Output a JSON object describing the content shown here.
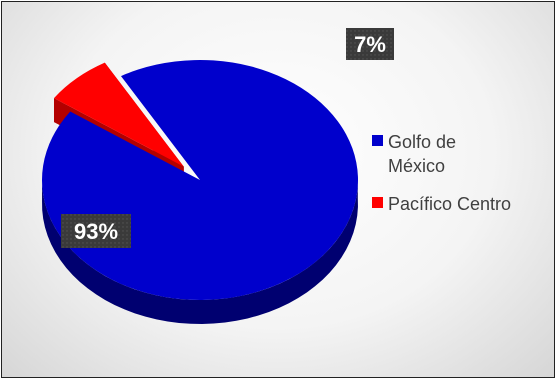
{
  "chart_data": {
    "type": "pie",
    "title": "",
    "categories": [
      "Golfo de México",
      "Pacífico Centro"
    ],
    "values": [
      93,
      7
    ],
    "data_labels": [
      "93%",
      "7%"
    ],
    "colors": [
      "#0000cc",
      "#ff0000"
    ],
    "legend_position": "right",
    "style": "3d-exploded"
  },
  "legend": {
    "items": [
      {
        "label_line1": "Golfo de",
        "label_line2": "México",
        "color": "#0000cc"
      },
      {
        "label_line1": "Pacífico Centro",
        "label_line2": "",
        "color": "#ff0000"
      }
    ]
  }
}
